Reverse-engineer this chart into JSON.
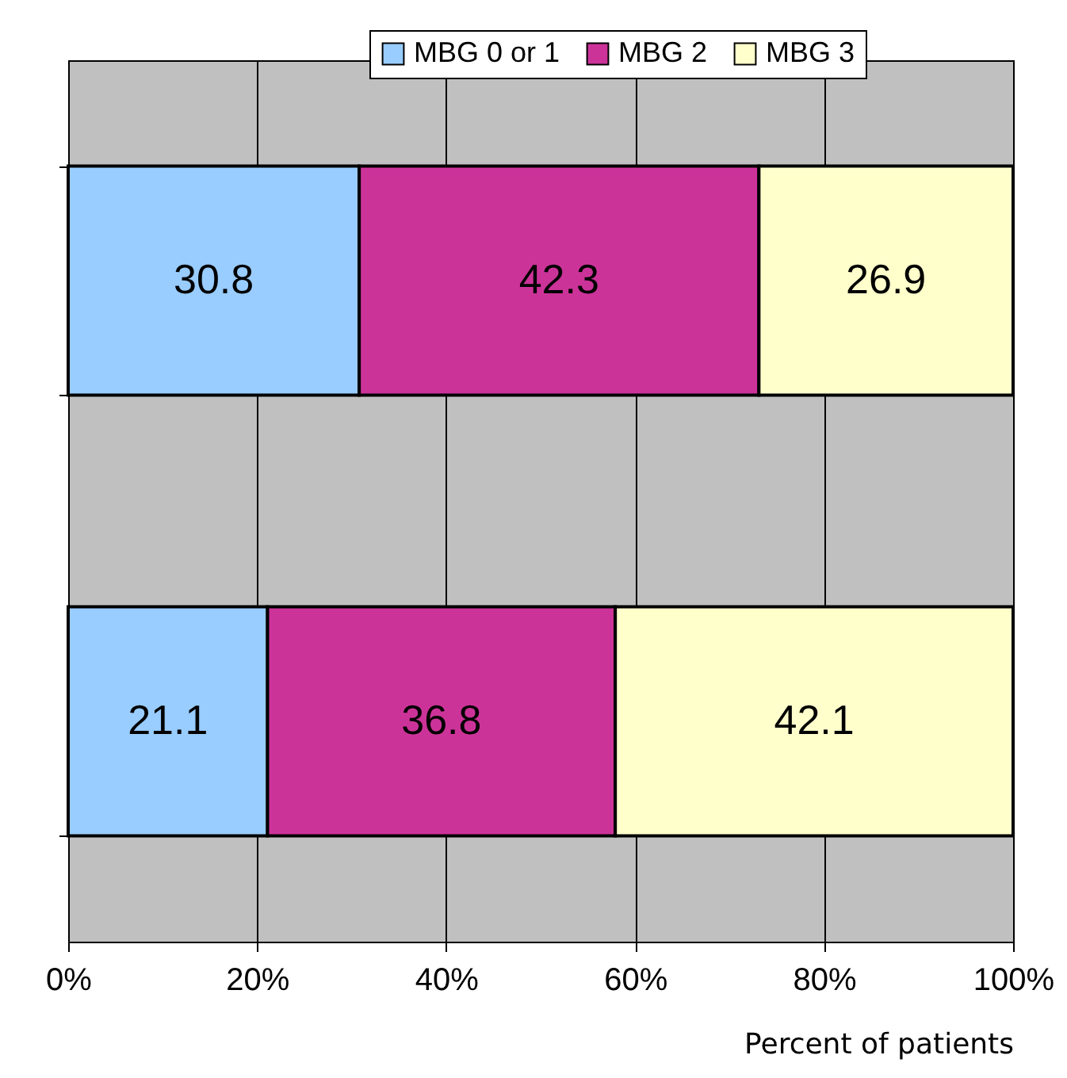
{
  "chart_data": {
    "type": "bar",
    "orientation": "horizontal",
    "stacked": true,
    "categories": [
      null,
      null
    ],
    "series": [
      {
        "name": "MBG 0 or 1",
        "color": "#99ccff",
        "values": [
          30.8,
          21.1
        ]
      },
      {
        "name": "MBG 2",
        "color": "#cc3399",
        "values": [
          42.3,
          36.8
        ]
      },
      {
        "name": "MBG 3",
        "color": "#ffffcc",
        "values": [
          26.9,
          42.1
        ]
      }
    ],
    "xlabel": "Percent of patients",
    "xlim": [
      0,
      100
    ],
    "xticks": [
      {
        "value": 0,
        "label": "0%"
      },
      {
        "value": 20,
        "label": "20%"
      },
      {
        "value": 40,
        "label": "40%"
      },
      {
        "value": 60,
        "label": "60%"
      },
      {
        "value": 80,
        "label": "80%"
      },
      {
        "value": 100,
        "label": "100%"
      }
    ],
    "grid": "x",
    "legend": "top right",
    "data_labels": true
  }
}
